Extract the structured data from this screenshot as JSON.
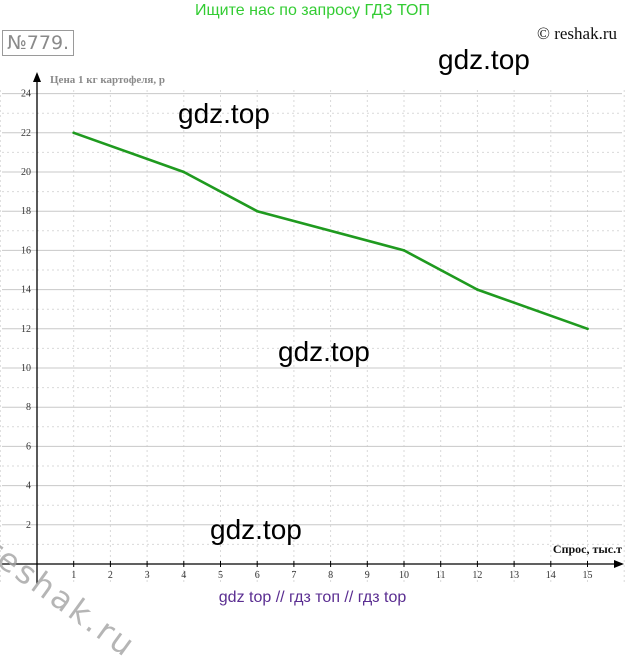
{
  "header": {
    "banner": "Ищите нас по запросу ГДЗ ТОП",
    "task_number": "№779.",
    "copyright": "© reshak.ru"
  },
  "watermarks": {
    "main": "gdz.top",
    "diagonal": "reshak.ru",
    "footer": "gdz top  //  гдз топ  //  гдз top"
  },
  "colors": {
    "series": "#1f9a1f",
    "grid_major": "#c8c8c8",
    "grid_minor": "#d9d9d9",
    "axis": "#000000",
    "tick_label": "#333333"
  },
  "chart_data": {
    "type": "line",
    "title": "",
    "ylabel": "Цена 1 кг картофеля, р",
    "xlabel": "Спрос, тыс.т",
    "xlim": [
      -1,
      16
    ],
    "ylim": [
      -1,
      24
    ],
    "x_ticks": [
      1,
      2,
      3,
      4,
      5,
      6,
      7,
      8,
      9,
      10,
      11,
      12,
      13,
      14,
      15
    ],
    "y_ticks": [
      2,
      4,
      6,
      8,
      10,
      12,
      14,
      16,
      18,
      20,
      22,
      24
    ],
    "grid": true,
    "series": [
      {
        "x": [
          1,
          4,
          6,
          10,
          12,
          15
        ],
        "y": [
          22,
          20,
          18,
          16,
          14,
          12
        ]
      }
    ]
  }
}
